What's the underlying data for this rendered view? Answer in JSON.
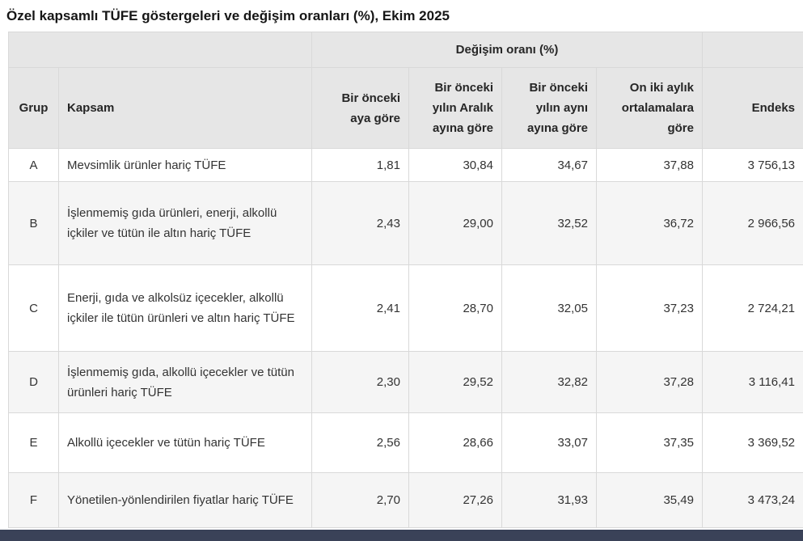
{
  "title": "Özel kapsamlı TÜFE göstergeleri ve değişim oranları (%), Ekim 2025",
  "table": {
    "group_header": "Değişim oranı (%)",
    "headers": {
      "grup": "Grup",
      "kapsam": "Kapsam",
      "prev_month": "Bir önceki aya göre",
      "since_december": "Bir önceki yılın Aralık ayına göre",
      "same_month_prev_year": "Bir önceki yılın aynı ayına göre",
      "twelve_month_avg": "On iki aylık ortalamalara göre",
      "endeks": "Endeks"
    },
    "rows": [
      {
        "grup": "A",
        "kapsam": "Mevsimlik ürünler hariç TÜFE",
        "m1": "1,81",
        "m2": "30,84",
        "m3": "34,67",
        "m4": "37,88",
        "endeks": "3 756,13"
      },
      {
        "grup": "B",
        "kapsam": "İşlenmemiş gıda ürünleri, enerji, alkollü içkiler ve tütün ile altın hariç TÜFE",
        "m1": "2,43",
        "m2": "29,00",
        "m3": "32,52",
        "m4": "36,72",
        "endeks": "2 966,56"
      },
      {
        "grup": "C",
        "kapsam": "Enerji, gıda ve alkolsüz içecekler, alkollü içkiler ile tütün ürünleri ve altın hariç TÜFE",
        "m1": "2,41",
        "m2": "28,70",
        "m3": "32,05",
        "m4": "37,23",
        "endeks": "2 724,21"
      },
      {
        "grup": "D",
        "kapsam": "İşlenmemiş gıda, alkollü içecekler ve tütün ürünleri hariç TÜFE",
        "m1": "2,30",
        "m2": "29,52",
        "m3": "32,82",
        "m4": "37,28",
        "endeks": "3 116,41"
      },
      {
        "grup": "E",
        "kapsam": "Alkollü içecekler ve tütün hariç TÜFE",
        "m1": "2,56",
        "m2": "28,66",
        "m3": "33,07",
        "m4": "37,35",
        "endeks": "3 369,52"
      },
      {
        "grup": "F",
        "kapsam": "Yönetilen-yönlendirilen fiyatlar hariç TÜFE",
        "m1": "2,70",
        "m2": "27,26",
        "m3": "31,93",
        "m4": "35,49",
        "endeks": "3 473,24"
      }
    ]
  },
  "colors": {
    "header_bg": "#e6e6e6",
    "alt_row_bg": "#f5f5f5",
    "border": "#d9d9d9",
    "text": "#333333",
    "bottom_bar": "#3a4258"
  },
  "chart_data": {
    "type": "table",
    "title": "Özel kapsamlı TÜFE göstergeleri ve değişim oranları (%), Ekim 2025",
    "group_header": "Değişim oranı (%)",
    "columns": [
      "Grup",
      "Kapsam",
      "Bir önceki aya göre",
      "Bir önceki yılın Aralık ayına göre",
      "Bir önceki yılın aynı ayına göre",
      "On iki aylık ortalamalara göre",
      "Endeks"
    ],
    "rows": [
      [
        "A",
        "Mevsimlik ürünler hariç TÜFE",
        1.81,
        30.84,
        34.67,
        37.88,
        3756.13
      ],
      [
        "B",
        "İşlenmemiş gıda ürünleri, enerji, alkollü içkiler ve tütün ile altın hariç TÜFE",
        2.43,
        29.0,
        32.52,
        36.72,
        2966.56
      ],
      [
        "C",
        "Enerji, gıda ve alkolsüz içecekler, alkollü içkiler ile tütün ürünleri ve altın hariç TÜFE",
        2.41,
        28.7,
        32.05,
        37.23,
        2724.21
      ],
      [
        "D",
        "İşlenmemiş gıda, alkollü içecekler ve tütün ürünleri hariç TÜFE",
        2.3,
        29.52,
        32.82,
        37.28,
        3116.41
      ],
      [
        "E",
        "Alkollü içecekler ve tütün hariç TÜFE",
        2.56,
        28.66,
        33.07,
        37.35,
        3369.52
      ],
      [
        "F",
        "Yönetilen-yönlendirilen fiyatlar hariç TÜFE",
        2.7,
        27.26,
        31.93,
        35.49,
        3473.24
      ]
    ]
  }
}
